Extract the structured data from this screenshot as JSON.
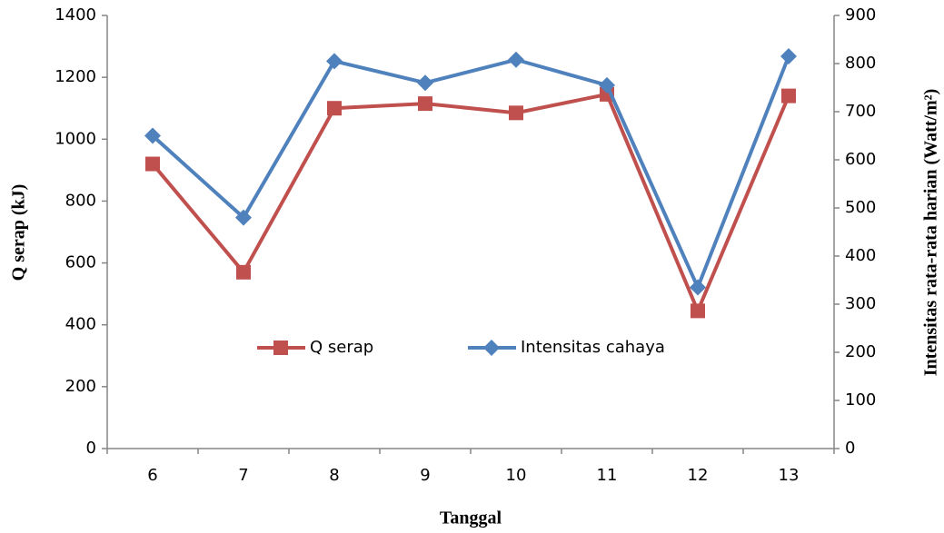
{
  "chart_data": {
    "type": "line",
    "x_label": "Tanggal",
    "y_label": "Q serap (kJ)",
    "y2_label": "Intensitas rata-rata harian (Watt/m²)",
    "categories": [
      "6",
      "7",
      "8",
      "9",
      "10",
      "11",
      "12",
      "13"
    ],
    "series": [
      {
        "name": "Q serap",
        "color": "#c0504d",
        "marker": "square",
        "values": [
          920,
          570,
          1100,
          1115,
          1085,
          1145,
          445,
          1140
        ]
      },
      {
        "name": "Intensitas cahaya",
        "color": "#4f81bd",
        "marker": "diamond",
        "axis": "y2",
        "values": [
          650,
          480,
          805,
          760,
          808,
          755,
          335,
          815
        ]
      }
    ],
    "ylim": [
      0,
      1400
    ],
    "yticks": [
      0,
      200,
      400,
      600,
      800,
      1000,
      1200,
      1400
    ],
    "y2lim": [
      0,
      900
    ],
    "y2ticks": [
      0,
      100,
      200,
      300,
      400,
      500,
      600,
      700,
      800,
      900
    ],
    "grid": false,
    "legend": "center"
  }
}
